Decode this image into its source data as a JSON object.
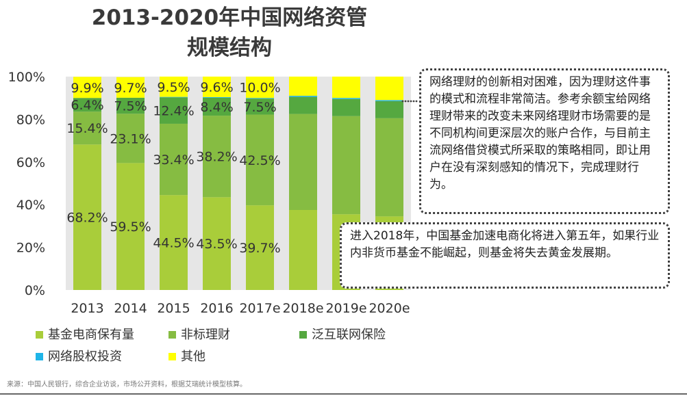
{
  "title_line1": "2013-2020年中国网络资管",
  "title_line2": "规模结构",
  "callout_top": "网络理财的创新相对困难，因为理财这件事的模式和流程非常简洁。参考余额宝给网络理财带来的改变未来网络理财市场需要的是不同机构间更深层次的账户合作，与目前主流网络借贷模式所采取的策略相同，即让用户在没有深刻感知的情况下，完成理财行为。",
  "callout_bottom": "进入2018年，中国基金加速电商化将进入第五年，如果行业内非货币基金不能崛起，则基金将失去黄金发展期。",
  "source_note": "来源：中国人民银行，综合企业访谈，市场公开资料，根据艾瑞统计模型核算。",
  "colors": {
    "ecommerce_fund": "#a9cd3a",
    "non_standard": "#86bc42",
    "internet_insurance": "#55a840",
    "equity_investment": "#1fb5e8",
    "other": "#ffff00",
    "plot_bg": "#e6e6e6"
  },
  "chart_data": {
    "type": "bar",
    "stacked": true,
    "categories": [
      "2013",
      "2014",
      "2015",
      "2016",
      "2017e",
      "2018e",
      "2019e",
      "2020e"
    ],
    "ylim": [
      0,
      100
    ],
    "yticks": [
      "0%",
      "20%",
      "40%",
      "60%",
      "80%",
      "100%"
    ],
    "legend_position": "bottom",
    "series": [
      {
        "name": "基金电商保有量",
        "key": "ecommerce_fund",
        "values": [
          68.2,
          59.5,
          44.5,
          43.5,
          39.7,
          37.5,
          35.5,
          34.5
        ],
        "labels": [
          "68.2%",
          "59.5%",
          "44.5%",
          "43.5%",
          "39.7%",
          "",
          "",
          ""
        ]
      },
      {
        "name": "非标理财",
        "key": "non_standard",
        "values": [
          15.4,
          23.1,
          33.4,
          38.2,
          42.5,
          45.0,
          46.0,
          46.0
        ],
        "labels": [
          "15.4%",
          "23.1%",
          "33.4%",
          "38.2%",
          "42.5%",
          "",
          "",
          ""
        ]
      },
      {
        "name": "泛互联网保险",
        "key": "internet_insurance",
        "values": [
          6.4,
          7.5,
          12.4,
          8.4,
          7.5,
          8.0,
          8.0,
          8.0
        ],
        "labels": [
          "6.4%",
          "7.5%",
          "12.4%",
          "8.4%",
          "7.5%",
          "",
          "",
          ""
        ]
      },
      {
        "name": "网络股权投资",
        "key": "equity_investment",
        "values": [
          0,
          0,
          0.2,
          0.3,
          0.3,
          0.5,
          0.5,
          0.5
        ],
        "labels": [
          "",
          "",
          "",
          "",
          "",
          "",
          "",
          ""
        ]
      },
      {
        "name": "其他",
        "key": "other",
        "values": [
          9.9,
          9.7,
          9.5,
          9.6,
          10.0,
          9.0,
          10.0,
          11.0
        ],
        "labels": [
          "9.9%",
          "9.7%",
          "9.5%",
          "9.6%",
          "10.0%",
          "",
          "",
          ""
        ]
      }
    ]
  }
}
